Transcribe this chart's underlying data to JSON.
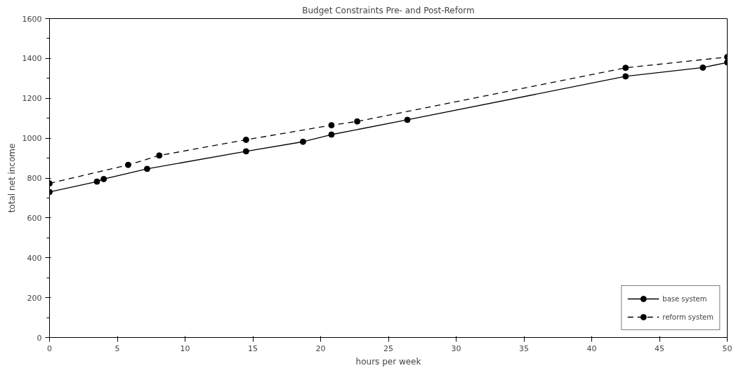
{
  "chart_data": {
    "type": "line",
    "title": "Budget Constraints Pre- and Post-Reform",
    "xlabel": "hours per week",
    "ylabel": "total net income",
    "xlim": [
      0,
      50
    ],
    "xticks": [
      0,
      5,
      10,
      15,
      20,
      25,
      30,
      35,
      40,
      45,
      50
    ],
    "ylim": [
      0,
      1600
    ],
    "yticks": [
      0,
      {
        "value": 100,
        "label": null
      },
      200,
      {
        "value": 300,
        "label": null
      },
      400,
      {
        "value": 500,
        "label": null
      },
      600,
      {
        "value": 700,
        "label": null
      },
      800,
      {
        "value": 900,
        "label": null
      },
      1000,
      {
        "value": 1100,
        "label": null
      },
      1200,
      {
        "value": 1300,
        "label": null
      },
      1400,
      {
        "value": 1500,
        "label": null
      },
      1600
    ],
    "grid": false,
    "legend": "bottom right",
    "marker": "circle",
    "series": [
      {
        "name": "base system",
        "color": "#000000",
        "line_style": "solid",
        "x": [
          0,
          3.5,
          4.0,
          7.2,
          14.5,
          18.7,
          20.8,
          26.4,
          42.5,
          48.2,
          50
        ],
        "values": [
          730,
          782,
          795,
          846,
          934,
          982,
          1018,
          1092,
          1310,
          1354,
          1380
        ]
      },
      {
        "name": "reform system",
        "color": "#000000",
        "line_style": "dashed",
        "x": [
          0,
          5.8,
          8.1,
          14.5,
          20.8,
          22.7,
          42.5,
          50
        ],
        "values": [
          773,
          866,
          913,
          992,
          1065,
          1084,
          1353,
          1407
        ]
      }
    ]
  }
}
